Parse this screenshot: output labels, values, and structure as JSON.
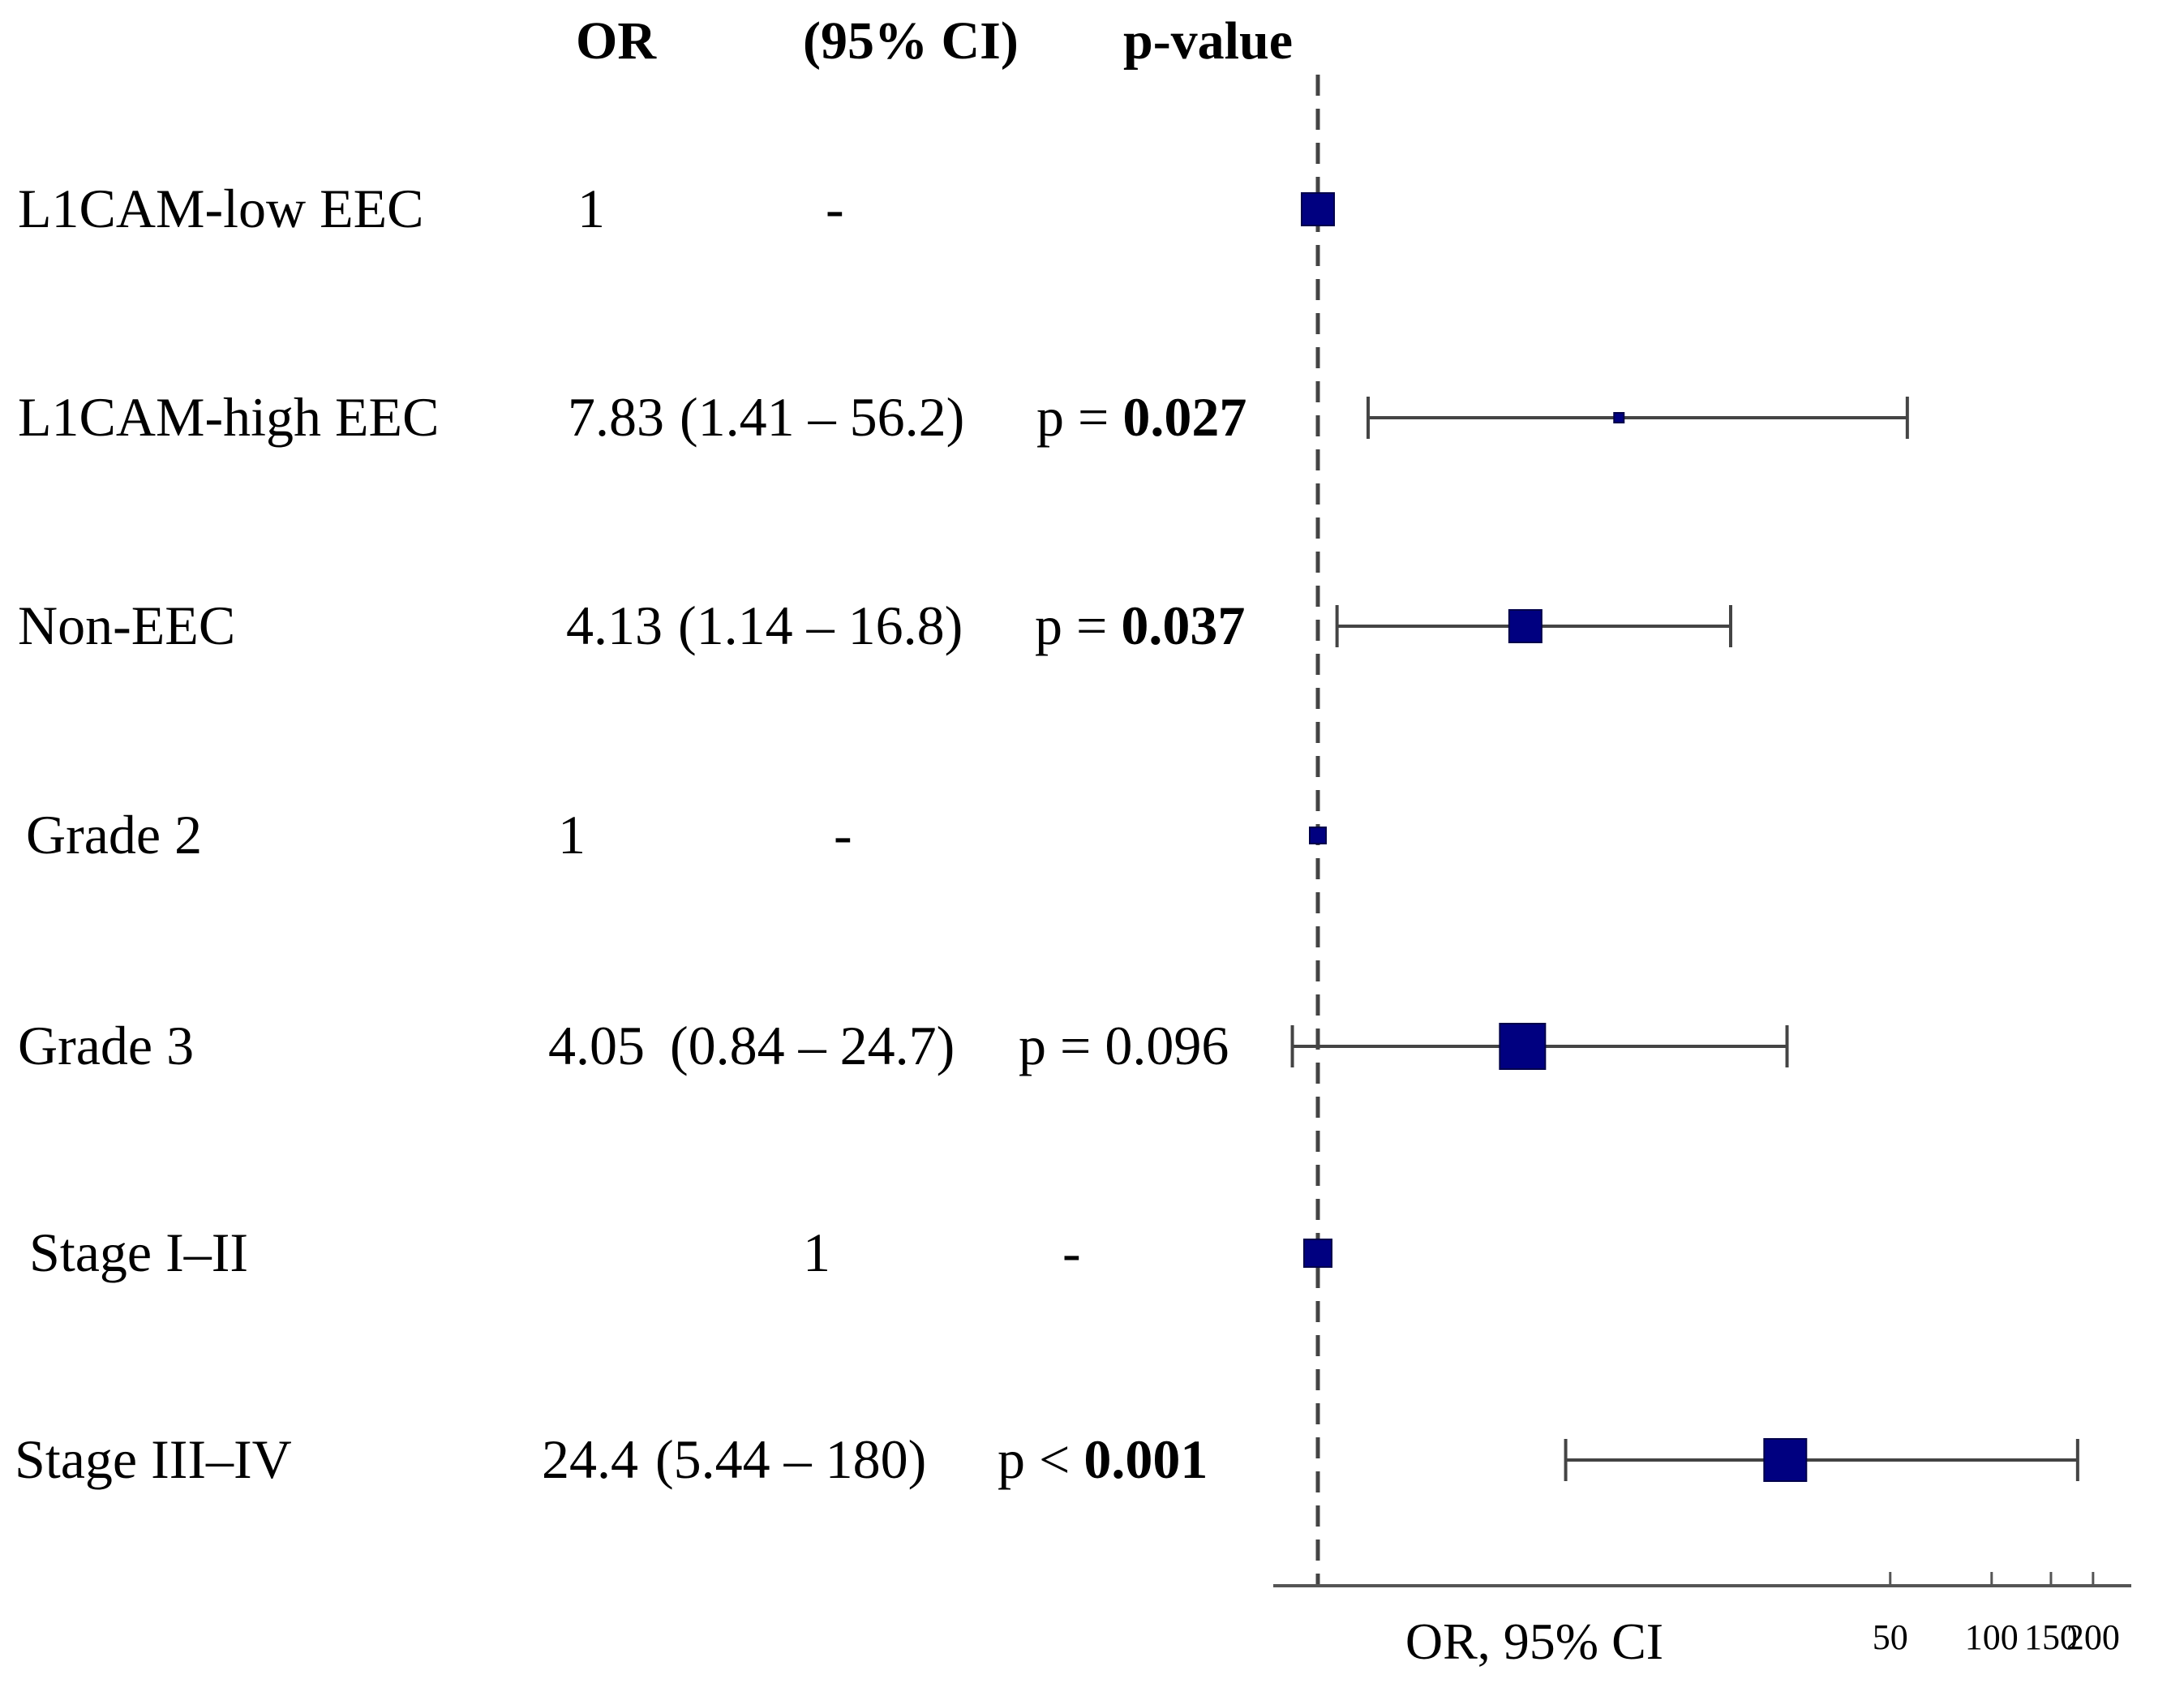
{
  "chart_data": {
    "type": "forest",
    "headers": {
      "or": "OR",
      "ci": "(95% CI)",
      "p": "p-value"
    },
    "rows": [
      {
        "label": "L1CAM-low EEC",
        "or_text": "1",
        "ci_text": "-",
        "p_prefix": "",
        "p_value_text": "",
        "p_bold": false,
        "or": 1,
        "ci_low": null,
        "ci_high": null
      },
      {
        "label": "L1CAM-high EEC",
        "or_text": "7.83",
        "ci_text": "(1.41 – 56.2)",
        "p_prefix": "p = ",
        "p_value_text": "0.027",
        "p_bold": true,
        "or": 7.83,
        "ci_low": 1.41,
        "ci_high": 56.2
      },
      {
        "label": "Non-EEC",
        "or_text": "4.13",
        "ci_text": "(1.14 – 16.8)",
        "p_prefix": "p = ",
        "p_value_text": "0.037",
        "p_bold": true,
        "or": 4.13,
        "ci_low": 1.14,
        "ci_high": 16.8
      },
      {
        "label": "Grade 2",
        "or_text": "1",
        "ci_text": "-",
        "p_prefix": "",
        "p_value_text": "",
        "p_bold": false,
        "or": 1,
        "ci_low": null,
        "ci_high": null
      },
      {
        "label": "Grade 3",
        "or_text": "4.05",
        "ci_text": "(0.84 – 24.7)",
        "p_prefix": "p = ",
        "p_value_text": "0.096",
        "p_bold": false,
        "or": 4.05,
        "ci_low": 0.84,
        "ci_high": 24.7
      },
      {
        "label": "Stage I–II",
        "or_text": "1",
        "ci_text": "-",
        "p_prefix": "",
        "p_value_text": "",
        "p_bold": false,
        "or": 1,
        "ci_low": null,
        "ci_high": null
      },
      {
        "label": "Stage III–IV",
        "or_text": "24.4",
        "ci_text": "(5.44 – 180)",
        "p_prefix": "p < ",
        "p_value_text": "0.001",
        "p_bold": true,
        "or": 24.4,
        "ci_low": 5.44,
        "ci_high": 180
      }
    ],
    "reference_line": 1,
    "x_ticks": [
      50,
      100,
      150,
      200
    ],
    "xlabel": "OR, 95% CI",
    "marker_color": "#000080",
    "line_color": "#444444"
  }
}
